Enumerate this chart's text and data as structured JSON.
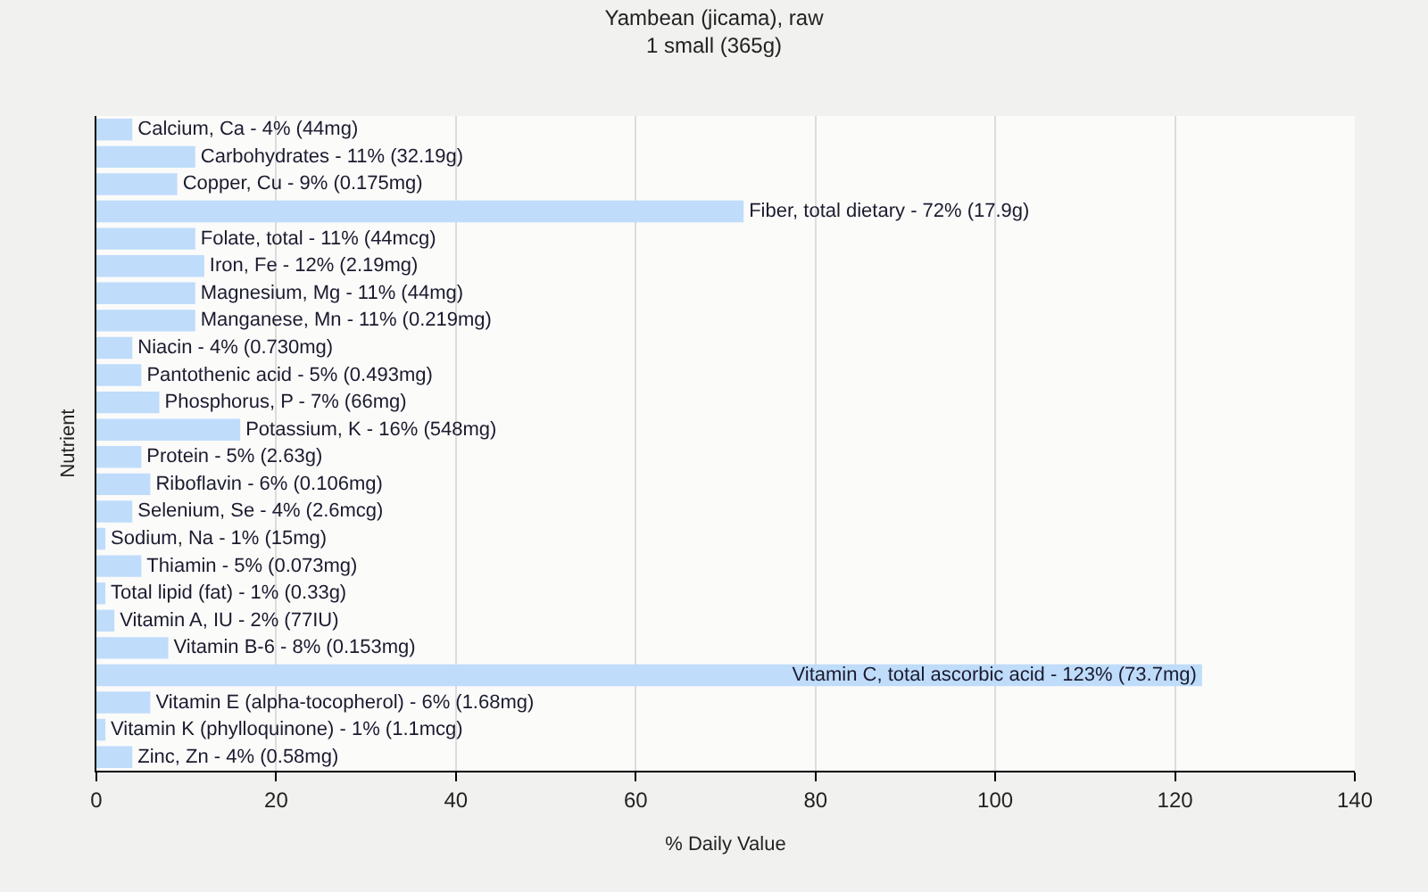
{
  "chart_data": {
    "type": "bar",
    "orientation": "horizontal",
    "title": "Yambean (jicama), raw",
    "subtitle": "1 small (365g)",
    "xlabel": "% Daily Value",
    "ylabel": "Nutrient",
    "categories": [
      "Calcium, Ca -",
      "Carbohydrates -",
      "Copper, Cu -",
      "Fiber, total dietary -",
      "Folate, total -",
      "Iron, Fe -",
      "Magnesium, Mg -",
      "Manganese, Mn -",
      "Niacin -",
      "Pantothenic acid -",
      "Phosphorus, P -",
      "Potassium, K -",
      "Protein -",
      "Riboflavin -",
      "Selenium, Se -",
      "Sodium, Na -",
      "Thiamin -",
      "Total lipid (fat) -",
      "Vitamin A, IU -",
      "Vitamin B-6 -",
      "Vitamin C, total ascorbic acid -",
      "Vitamin E (alpha-tocopherol) -",
      "Vitamin K (phylloquinone) -",
      "Zinc, Zn -"
    ],
    "values": [
      4,
      11,
      9,
      72,
      11,
      12,
      11,
      11,
      4,
      5,
      7,
      16,
      5,
      6,
      4,
      1,
      5,
      1,
      2,
      8,
      123,
      6,
      1,
      4
    ],
    "value_labels": [
      "4% (44mg)",
      "11% (32.19g)",
      "9% (0.175mg)",
      "72% (17.9g)",
      "11% (44mcg)",
      "12% (2.19mg)",
      "11% (44mg)",
      "11% (0.219mg)",
      "4% (0.730mg)",
      "5% (0.493mg)",
      "7% (66mg)",
      "16% (548mg)",
      "5% (2.63g)",
      "6% (0.106mg)",
      "4% (2.6mcg)",
      "1% (15mg)",
      "5% (0.073mg)",
      "1% (0.33g)",
      "2% (77IU)",
      "8% (0.153mg)",
      "123% (73.7mg)",
      "6% (1.68mg)",
      "1% (1.1mcg)",
      "4% (0.58mg)"
    ],
    "color": "#bfdcfb",
    "xlim": [
      0,
      140
    ],
    "xticks": [
      0,
      20,
      40,
      60,
      80,
      100,
      120,
      140
    ],
    "grid": "x",
    "tick_labels": "x"
  }
}
